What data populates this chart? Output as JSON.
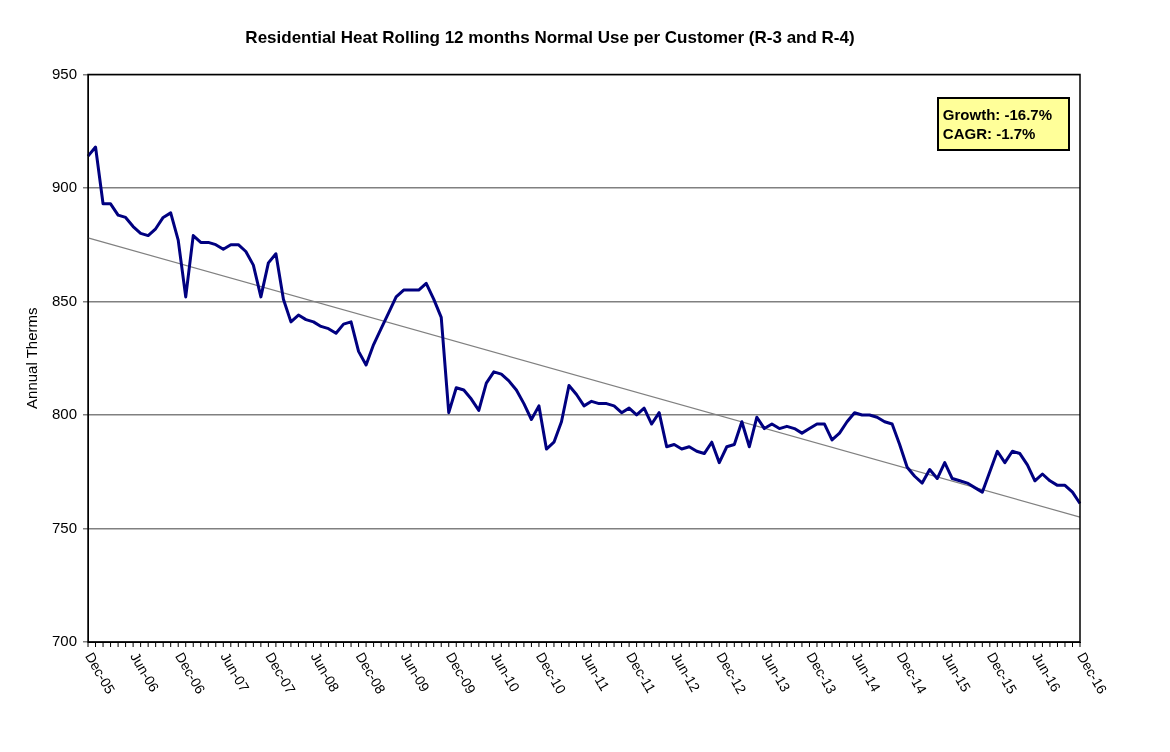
{
  "chart_data": {
    "type": "line",
    "title": "Residential Heat Rolling 12 months Normal Use per Customer (R-3 and R-4)",
    "ylabel": "Annual Therms",
    "categories": [
      "Dec-05",
      null,
      null,
      null,
      null,
      null,
      "Jun-06",
      null,
      null,
      null,
      null,
      null,
      "Dec-06",
      null,
      null,
      null,
      null,
      null,
      "Jun-07",
      null,
      null,
      null,
      null,
      null,
      "Dec-07",
      null,
      null,
      null,
      null,
      null,
      "Jun-08",
      null,
      null,
      null,
      null,
      null,
      "Dec-08",
      null,
      null,
      null,
      null,
      null,
      "Jun-09",
      null,
      null,
      null,
      null,
      null,
      "Dec-09",
      null,
      null,
      null,
      null,
      null,
      "Jun-10",
      null,
      null,
      null,
      null,
      null,
      "Dec-10",
      null,
      null,
      null,
      null,
      null,
      "Jun-11",
      null,
      null,
      null,
      null,
      null,
      "Dec-11",
      null,
      null,
      null,
      null,
      null,
      "Jun-12",
      null,
      null,
      null,
      null,
      null,
      "Dec-12",
      null,
      null,
      null,
      null,
      null,
      "Jun-13",
      null,
      null,
      null,
      null,
      null,
      "Dec-13",
      null,
      null,
      null,
      null,
      null,
      "Jun-14",
      null,
      null,
      null,
      null,
      null,
      "Dec-14",
      null,
      null,
      null,
      null,
      null,
      "Jun-15",
      null,
      null,
      null,
      null,
      null,
      "Dec-15",
      null,
      null,
      null,
      null,
      null,
      "Jun-16",
      null,
      null,
      null,
      null,
      null,
      "Dec-16"
    ],
    "series": [
      {
        "color": "#000080",
        "values": [
          914,
          918,
          893,
          893,
          888,
          887,
          883,
          880,
          879,
          882,
          887,
          889,
          877,
          852,
          879,
          876,
          876,
          875,
          873,
          875,
          875,
          872,
          866,
          852,
          867,
          871,
          851,
          841,
          844,
          842,
          841,
          839,
          838,
          836,
          840,
          841,
          828,
          822,
          831,
          838,
          845,
          852,
          855,
          855,
          855,
          858,
          851,
          843,
          801,
          812,
          811,
          807,
          802,
          814,
          819,
          818,
          815,
          811,
          805,
          798,
          804,
          785,
          788,
          797,
          813,
          809,
          804,
          806,
          805,
          805,
          804,
          801,
          803,
          800,
          803,
          796,
          801,
          786,
          787,
          785,
          786,
          784,
          783,
          788,
          779,
          786,
          787,
          797,
          786,
          799,
          794,
          796,
          794,
          795,
          794,
          792,
          794,
          796,
          796,
          789,
          792,
          797,
          801,
          800,
          800,
          799,
          797,
          796,
          787,
          777,
          773,
          770,
          776,
          772,
          779,
          772,
          771,
          770,
          768,
          766,
          775,
          784,
          779,
          784,
          783,
          778,
          771,
          774,
          771,
          769,
          769,
          766,
          761
        ]
      },
      {
        "color": "#808080",
        "values": [
          878,
          null,
          null,
          null,
          null,
          null,
          null,
          null,
          null,
          null,
          null,
          null,
          null,
          null,
          null,
          null,
          null,
          null,
          null,
          null,
          null,
          null,
          null,
          null,
          null,
          null,
          null,
          null,
          null,
          null,
          null,
          null,
          null,
          null,
          null,
          null,
          null,
          null,
          null,
          null,
          null,
          null,
          null,
          null,
          null,
          null,
          null,
          null,
          null,
          null,
          null,
          null,
          null,
          null,
          null,
          null,
          null,
          null,
          null,
          null,
          null,
          null,
          null,
          null,
          null,
          null,
          null,
          null,
          null,
          null,
          null,
          null,
          null,
          null,
          null,
          null,
          null,
          null,
          null,
          null,
          null,
          null,
          null,
          null,
          null,
          null,
          null,
          null,
          null,
          null,
          null,
          null,
          null,
          null,
          null,
          null,
          null,
          null,
          null,
          null,
          null,
          null,
          null,
          null,
          null,
          null,
          null,
          null,
          null,
          null,
          null,
          null,
          null,
          null,
          null,
          null,
          null,
          null,
          null,
          null,
          null,
          null,
          null,
          null,
          null,
          null,
          null,
          null,
          null,
          null,
          null,
          null,
          755
        ]
      }
    ],
    "ylim": [
      700,
      950
    ],
    "yticks": [
      700,
      750,
      800,
      850,
      900,
      950
    ],
    "grid": "y",
    "legend": false,
    "marker": "none",
    "annotations": [
      "Growth: -16.7%",
      "CAGR: -1.7%"
    ]
  }
}
